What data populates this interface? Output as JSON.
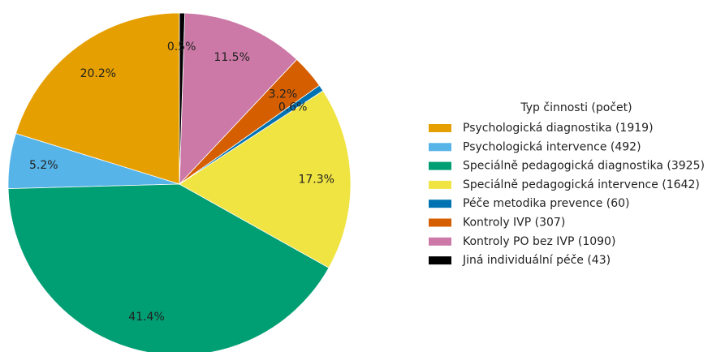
{
  "chart_data": {
    "type": "pie",
    "legend_title": "Typ činnosti (počet)",
    "categories": [
      "Psychologická diagnostika (1919)",
      "Psychologická intervence (492)",
      "Speciálně pedagogická diagnostika (3925)",
      "Speciálně pedagogická intervence (1642)",
      "Péče metodika prevence (60)",
      "Kontroly IVP (307)",
      "Kontroly PO bez IVP (1090)",
      "Jiná individuální péče (43)"
    ],
    "values": [
      20.2,
      5.2,
      41.4,
      17.3,
      0.6,
      3.2,
      11.5,
      0.5
    ],
    "value_labels": [
      "20.2%",
      "5.2%",
      "41.4%",
      "17.3%",
      "0.6%",
      "3.2%",
      "11.5%",
      "0.5%"
    ],
    "colors": [
      "#e69f00",
      "#56b4e9",
      "#009e73",
      "#f0e442",
      "#0072b2",
      "#d55e00",
      "#cc79a7",
      "#000000"
    ],
    "legend_position": "right"
  }
}
